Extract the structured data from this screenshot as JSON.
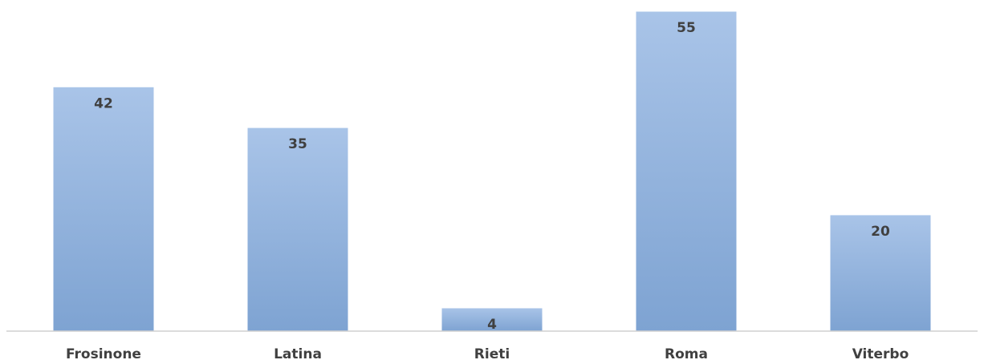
{
  "chart_data": {
    "type": "bar",
    "categories": [
      "Frosinone",
      "Latina",
      "Rieti",
      "Roma",
      "Viterbo"
    ],
    "values": [
      42,
      35,
      4,
      55,
      20
    ],
    "title": "",
    "xlabel": "",
    "ylabel": "",
    "ylim": [
      0,
      55
    ],
    "grid": false,
    "legend": "none",
    "data_labels": true,
    "colors": {
      "bar_top": "#a9c4e8",
      "bar_bottom": "#7ea3d2",
      "bar_edge": "#ffffff",
      "axis": "#d0d0d0",
      "text": "#404040"
    }
  }
}
